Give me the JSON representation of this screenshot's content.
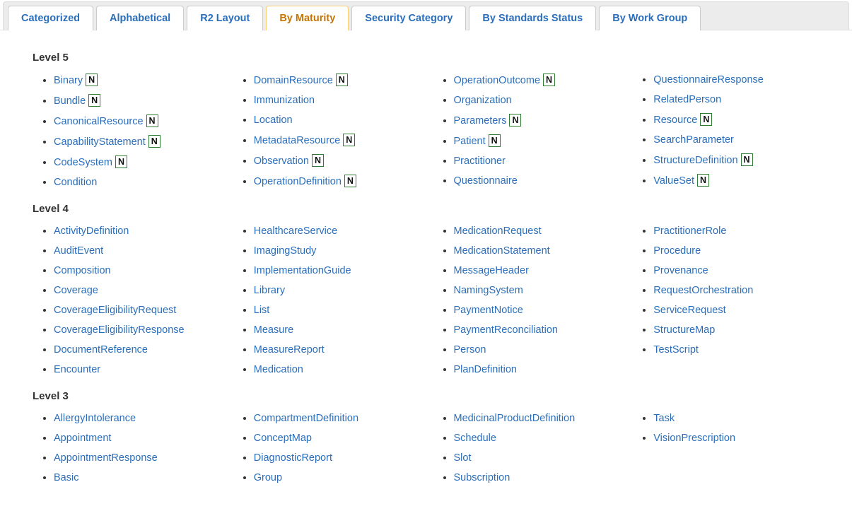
{
  "colors": {
    "link": "#2a6ebb",
    "active_tab_text": "#c77405",
    "active_tab_border": "#fbd073",
    "tabbar_bg": "#ececec",
    "badge_border": "#2f7d32",
    "heading": "#333333"
  },
  "tabs": [
    {
      "label": "Categorized",
      "active": false
    },
    {
      "label": "Alphabetical",
      "active": false
    },
    {
      "label": "R2 Layout",
      "active": false
    },
    {
      "label": "By Maturity",
      "active": true
    },
    {
      "label": "Security Category",
      "active": false
    },
    {
      "label": "By Standards Status",
      "active": false
    },
    {
      "label": "By Work Group",
      "active": false
    }
  ],
  "badge_letter": "N",
  "levels": [
    {
      "title": "Level 5",
      "columns": [
        [
          {
            "label": "Binary",
            "n": true
          },
          {
            "label": "Bundle",
            "n": true
          },
          {
            "label": "CanonicalResource",
            "n": true
          },
          {
            "label": "CapabilityStatement",
            "n": true
          },
          {
            "label": "CodeSystem",
            "n": true
          },
          {
            "label": "Condition",
            "n": false
          }
        ],
        [
          {
            "label": "DomainResource",
            "n": true
          },
          {
            "label": "Immunization",
            "n": false
          },
          {
            "label": "Location",
            "n": false
          },
          {
            "label": "MetadataResource",
            "n": true
          },
          {
            "label": "Observation",
            "n": true
          },
          {
            "label": "OperationDefinition",
            "n": true
          }
        ],
        [
          {
            "label": "OperationOutcome",
            "n": true
          },
          {
            "label": "Organization",
            "n": false
          },
          {
            "label": "Parameters",
            "n": true
          },
          {
            "label": "Patient",
            "n": true
          },
          {
            "label": "Practitioner",
            "n": false
          },
          {
            "label": "Questionnaire",
            "n": false
          }
        ],
        [
          {
            "label": "QuestionnaireResponse",
            "n": false
          },
          {
            "label": "RelatedPerson",
            "n": false
          },
          {
            "label": "Resource",
            "n": true
          },
          {
            "label": "SearchParameter",
            "n": false
          },
          {
            "label": "StructureDefinition",
            "n": true
          },
          {
            "label": "ValueSet",
            "n": true
          }
        ]
      ]
    },
    {
      "title": "Level 4",
      "columns": [
        [
          {
            "label": "ActivityDefinition",
            "n": false
          },
          {
            "label": "AuditEvent",
            "n": false
          },
          {
            "label": "Composition",
            "n": false
          },
          {
            "label": "Coverage",
            "n": false
          },
          {
            "label": "CoverageEligibilityRequest",
            "n": false
          },
          {
            "label": "CoverageEligibilityResponse",
            "n": false
          },
          {
            "label": "DocumentReference",
            "n": false
          },
          {
            "label": "Encounter",
            "n": false
          }
        ],
        [
          {
            "label": "HealthcareService",
            "n": false
          },
          {
            "label": "ImagingStudy",
            "n": false
          },
          {
            "label": "ImplementationGuide",
            "n": false
          },
          {
            "label": "Library",
            "n": false
          },
          {
            "label": "List",
            "n": false
          },
          {
            "label": "Measure",
            "n": false
          },
          {
            "label": "MeasureReport",
            "n": false
          },
          {
            "label": "Medication",
            "n": false
          }
        ],
        [
          {
            "label": "MedicationRequest",
            "n": false
          },
          {
            "label": "MedicationStatement",
            "n": false
          },
          {
            "label": "MessageHeader",
            "n": false
          },
          {
            "label": "NamingSystem",
            "n": false
          },
          {
            "label": "PaymentNotice",
            "n": false
          },
          {
            "label": "PaymentReconciliation",
            "n": false
          },
          {
            "label": "Person",
            "n": false
          },
          {
            "label": "PlanDefinition",
            "n": false
          }
        ],
        [
          {
            "label": "PractitionerRole",
            "n": false
          },
          {
            "label": "Procedure",
            "n": false
          },
          {
            "label": "Provenance",
            "n": false
          },
          {
            "label": "RequestOrchestration",
            "n": false
          },
          {
            "label": "ServiceRequest",
            "n": false
          },
          {
            "label": "StructureMap",
            "n": false
          },
          {
            "label": "TestScript",
            "n": false
          }
        ]
      ]
    },
    {
      "title": "Level 3",
      "columns": [
        [
          {
            "label": "AllergyIntolerance",
            "n": false
          },
          {
            "label": "Appointment",
            "n": false
          },
          {
            "label": "AppointmentResponse",
            "n": false
          },
          {
            "label": "Basic",
            "n": false
          }
        ],
        [
          {
            "label": "CompartmentDefinition",
            "n": false
          },
          {
            "label": "ConceptMap",
            "n": false
          },
          {
            "label": "DiagnosticReport",
            "n": false
          },
          {
            "label": "Group",
            "n": false
          }
        ],
        [
          {
            "label": "MedicinalProductDefinition",
            "n": false
          },
          {
            "label": "Schedule",
            "n": false
          },
          {
            "label": "Slot",
            "n": false
          },
          {
            "label": "Subscription",
            "n": false
          }
        ],
        [
          {
            "label": "Task",
            "n": false
          },
          {
            "label": "VisionPrescription",
            "n": false
          }
        ]
      ]
    }
  ]
}
